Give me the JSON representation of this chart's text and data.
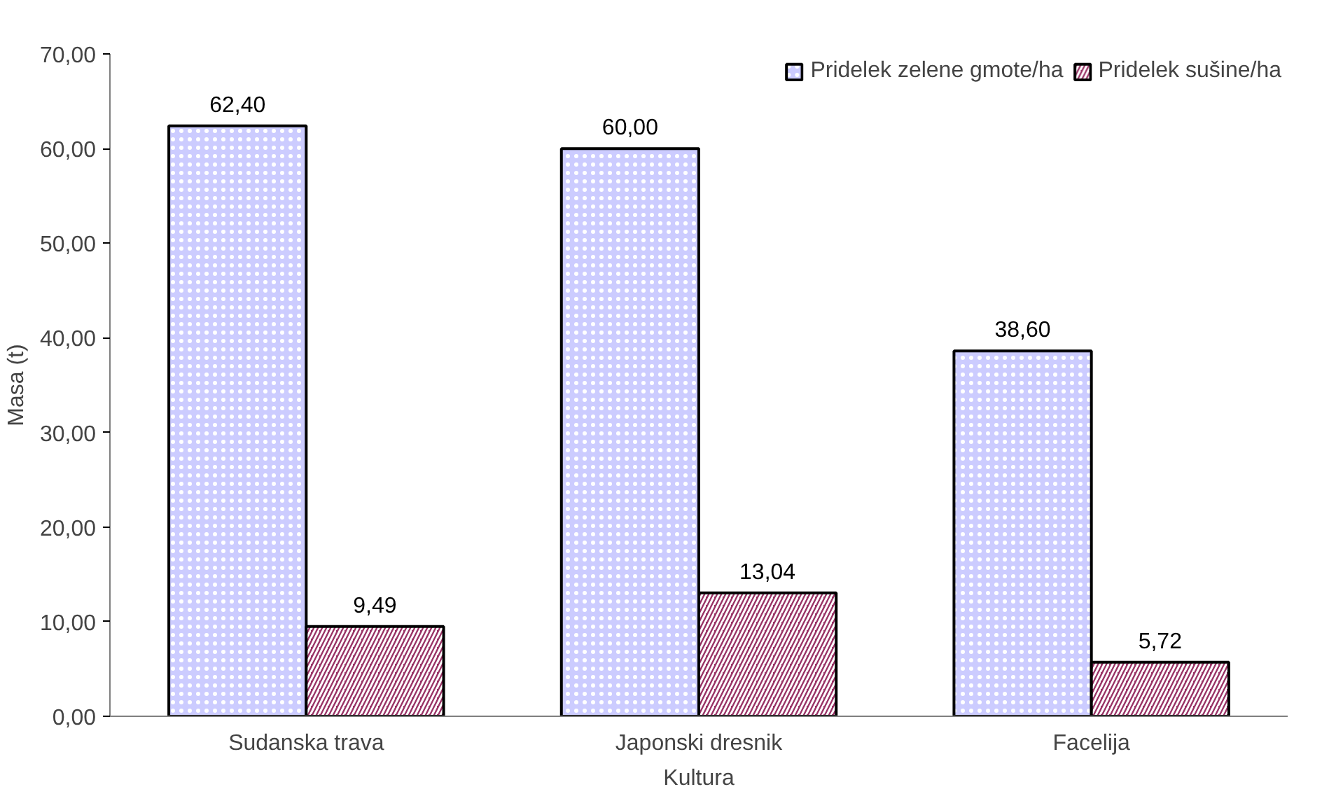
{
  "chart_data": {
    "type": "bar",
    "xlabel": "Kultura",
    "ylabel": "Masa (t)",
    "categories": [
      "Sudanska trava",
      "Japonski dresnik",
      "Facelija"
    ],
    "series": [
      {
        "name": "Pridelek zelene gmote/ha",
        "color": "#ccccff",
        "values": [
          62.4,
          60.0,
          38.6
        ],
        "value_labels": [
          "62,40",
          "60,00",
          "38,60"
        ]
      },
      {
        "name": "Pridelek sušine/ha",
        "color": "#993366",
        "values": [
          9.49,
          13.04,
          5.72
        ],
        "value_labels": [
          "9,49",
          "13,04",
          "5,72"
        ]
      }
    ],
    "ylim": [
      0,
      70
    ],
    "yticks": [
      {
        "value": 0,
        "label": "0,00"
      },
      {
        "value": 10,
        "label": "10,00"
      },
      {
        "value": 20,
        "label": "20,00"
      },
      {
        "value": 30,
        "label": "30,00"
      },
      {
        "value": 40,
        "label": "40,00"
      },
      {
        "value": 50,
        "label": "50,00"
      },
      {
        "value": 60,
        "label": "60,00"
      },
      {
        "value": 70,
        "label": "70,00"
      }
    ],
    "grid": false,
    "legend": "top right"
  }
}
